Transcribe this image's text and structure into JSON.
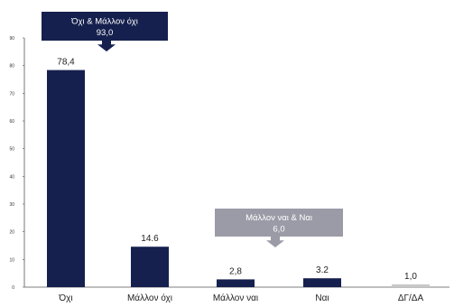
{
  "chart_data": {
    "type": "bar",
    "categories": [
      "Όχι",
      "Μάλλον όχι",
      "Μάλλον ναι",
      "Ναι",
      "ΔΓ/ΔΑ"
    ],
    "values": [
      78.4,
      14.6,
      2.8,
      3.2,
      1.0
    ],
    "value_labels": [
      "78,4",
      "14.6",
      "2,8",
      "3.2",
      "1,0"
    ],
    "ylim": [
      0,
      90
    ],
    "yticks": [
      0,
      10,
      20,
      30,
      40,
      50,
      60,
      70,
      80,
      90
    ],
    "ytick_labels": [
      "0",
      "10",
      "20",
      "30",
      "40",
      "50",
      "60",
      "70",
      "80",
      "90"
    ],
    "title": "",
    "xlabel": "",
    "ylabel": "",
    "grid": false,
    "colors": {
      "bar": "#16204e",
      "bar_light": "#c8c8c8",
      "callout_dark": "#16204e",
      "callout_gray": "#9b9ba8"
    },
    "callouts": [
      {
        "line1": "Όχι & Μάλλον όχι",
        "line2": "93,0"
      },
      {
        "line1": "Μάλλον ναι & Ναι",
        "line2": "6,0"
      }
    ]
  }
}
